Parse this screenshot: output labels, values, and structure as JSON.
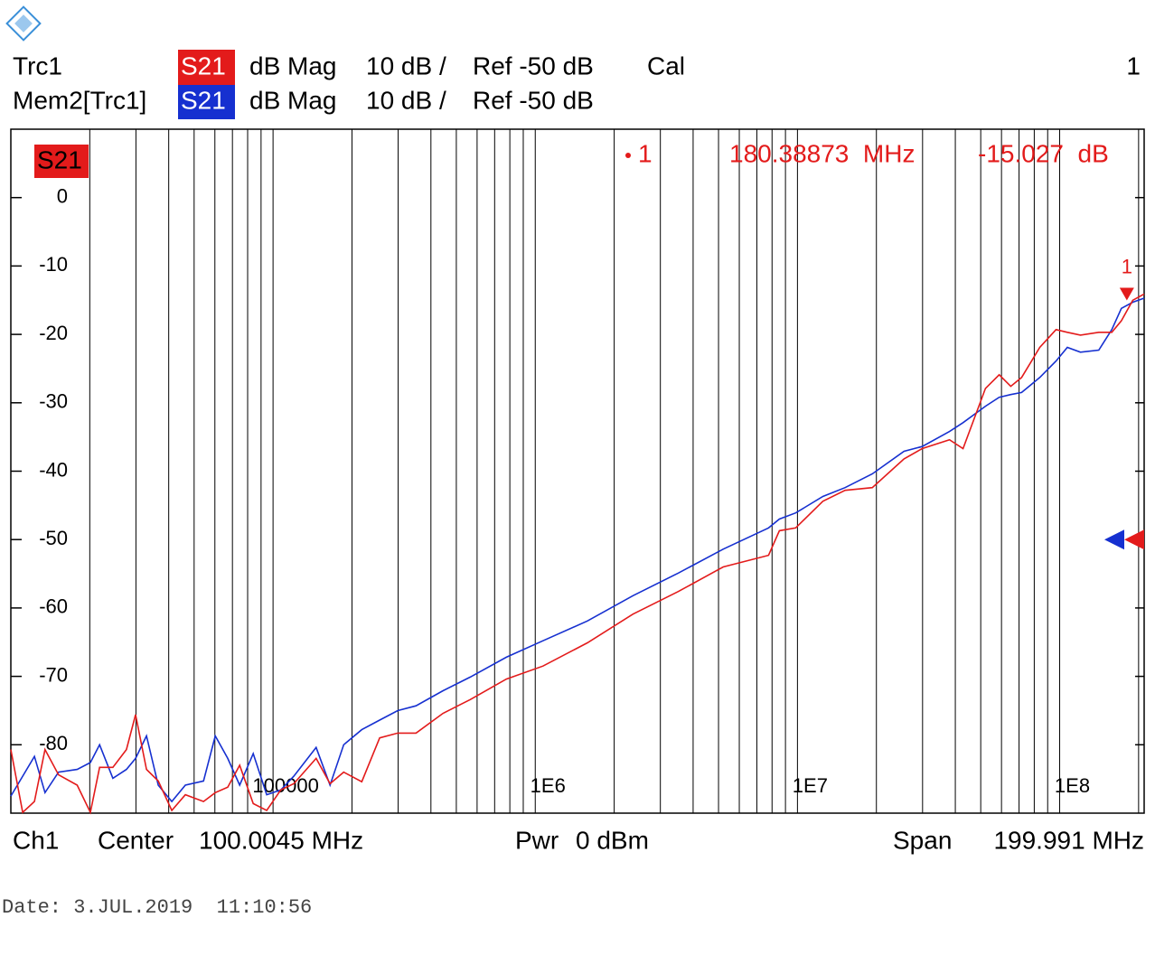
{
  "header": {
    "cal": "Cal",
    "channel_number": "1"
  },
  "chart_data": {
    "type": "line",
    "xscale": "log",
    "xlim": [
      10000,
      210000000
    ],
    "ylim": [
      -90,
      10
    ],
    "xticks": [
      {
        "value": 100000,
        "label": "100000"
      },
      {
        "value": 1000000,
        "label": "1E6"
      },
      {
        "value": 10000000,
        "label": "1E7"
      },
      {
        "value": 100000000,
        "label": "1E8"
      }
    ],
    "yticks": [
      0,
      -10,
      -20,
      -30,
      -40,
      -50,
      -60,
      -70,
      -80
    ],
    "grid": "x",
    "ref_level": -50,
    "x": [
      10000,
      11100,
      12300,
      13500,
      15200,
      17900,
      20100,
      21800,
      24500,
      27600,
      29900,
      32900,
      36500,
      41100,
      46300,
      54300,
      60200,
      67200,
      74600,
      84000,
      94600,
      107000,
      120000,
      146000,
      165000,
      186000,
      218000,
      255000,
      299000,
      351000,
      445000,
      565000,
      776000,
      1070000,
      1580000,
      2360000,
      3510000,
      5210000,
      7760000,
      8530000,
      9840000,
      12500000,
      15200000,
      19300000,
      25500000,
      29900000,
      38000000,
      42800000,
      52100000,
      58800000,
      65100000,
      71600000,
      84000000,
      96900000,
      107000000,
      120000000,
      141000000,
      158000000,
      172000000,
      190000000,
      210000000
    ],
    "series": [
      {
        "name": "Trc1",
        "parameter": "S21",
        "format": "dB Mag",
        "scale": "10 dB /",
        "reference": "Ref -50 dB",
        "color": "#e31b1b",
        "values": [
          -80.7,
          -89.9,
          -88.3,
          -80.7,
          -84.4,
          -85.9,
          -89.9,
          -83.3,
          -83.3,
          -80.7,
          -75.6,
          -83.6,
          -85.3,
          -89.6,
          -87.3,
          -88.3,
          -87.0,
          -86.2,
          -83.0,
          -88.6,
          -89.6,
          -86.6,
          -85.7,
          -82.0,
          -85.7,
          -84.0,
          -85.4,
          -79.0,
          -78.3,
          -78.3,
          -75.4,
          -73.4,
          -70.4,
          -68.5,
          -65.1,
          -60.9,
          -57.6,
          -54.0,
          -52.3,
          -48.7,
          -48.3,
          -44.4,
          -42.8,
          -42.4,
          -38.2,
          -36.7,
          -35.4,
          -36.7,
          -27.9,
          -25.9,
          -27.6,
          -26.3,
          -21.9,
          -19.3,
          -19.7,
          -20.1,
          -19.7,
          -19.7,
          -18.0,
          -15.0,
          -14.1
        ]
      },
      {
        "name": "Mem2[Trc1]",
        "parameter": "S21",
        "format": "dB Mag",
        "scale": "10 dB /",
        "reference": "Ref -50 dB",
        "color": "#1630d0",
        "values": [
          -87.5,
          -84.6,
          -81.7,
          -87.0,
          -84.0,
          -83.6,
          -82.6,
          -80.0,
          -84.9,
          -83.6,
          -82.0,
          -78.7,
          -85.9,
          -88.3,
          -85.9,
          -85.3,
          -78.7,
          -82.0,
          -85.9,
          -81.3,
          -87.3,
          -86.6,
          -84.6,
          -80.4,
          -85.9,
          -80.0,
          -77.8,
          -76.4,
          -75.0,
          -74.3,
          -72.1,
          -70.1,
          -67.2,
          -64.8,
          -61.9,
          -58.2,
          -54.9,
          -51.4,
          -48.3,
          -47.0,
          -46.1,
          -43.7,
          -42.4,
          -40.4,
          -37.1,
          -36.4,
          -34.2,
          -32.9,
          -30.5,
          -29.2,
          -28.8,
          -28.5,
          -26.3,
          -23.9,
          -21.9,
          -22.6,
          -22.3,
          -19.3,
          -16.2,
          -15.3,
          -14.7
        ]
      }
    ],
    "marker": {
      "name": "1",
      "x": 180388730,
      "y": -15.027,
      "x_label": "180.38873  MHz",
      "y_label": "-15.027  dB"
    }
  },
  "footer": {
    "channel": "Ch1",
    "center_label": "Center",
    "center": "100.0045 MHz",
    "power_label": "Pwr",
    "power": "0 dBm",
    "span_label": "Span",
    "span": "199.991 MHz"
  },
  "date": "Date: 3.JUL.2019  11:10:56"
}
